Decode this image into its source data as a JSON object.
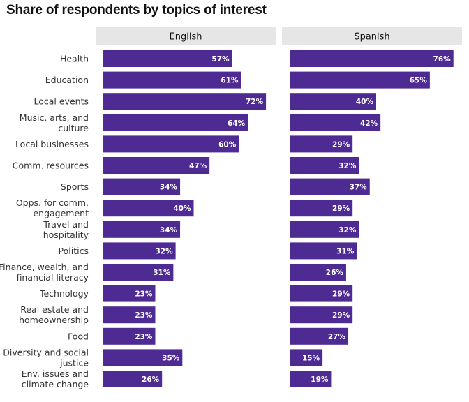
{
  "chart_data": {
    "type": "bar",
    "orientation": "horizontal",
    "title": "Share of respondents by topics of interest",
    "categories": [
      [
        "Health"
      ],
      [
        "Education"
      ],
      [
        "Local events"
      ],
      [
        "Music, arts, and",
        "culture"
      ],
      [
        "Local businesses"
      ],
      [
        "Comm. resources"
      ],
      [
        "Sports"
      ],
      [
        "Opps. for comm.",
        "engagement"
      ],
      [
        "Travel and",
        "hospitality"
      ],
      [
        "Politics"
      ],
      [
        "Finance, wealth, and",
        "financial literacy"
      ],
      [
        "Technology"
      ],
      [
        "Real estate and",
        "homeownership"
      ],
      [
        "Food"
      ],
      [
        "Diversity and social",
        "justice"
      ],
      [
        "Env. issues and",
        "climate change"
      ]
    ],
    "panels": [
      {
        "name": "English",
        "values": [
          57,
          61,
          72,
          64,
          60,
          47,
          34,
          40,
          34,
          32,
          31,
          23,
          23,
          23,
          35,
          26
        ]
      },
      {
        "name": "Spanish",
        "values": [
          76,
          65,
          40,
          42,
          29,
          32,
          37,
          29,
          32,
          31,
          26,
          29,
          29,
          27,
          15,
          19
        ]
      }
    ],
    "value_suffix": "%",
    "xlim": [
      0,
      80
    ],
    "bar_color": "#4e2a93",
    "panel_header_color": "#e6e6e6",
    "legend": "none",
    "grid": false
  }
}
